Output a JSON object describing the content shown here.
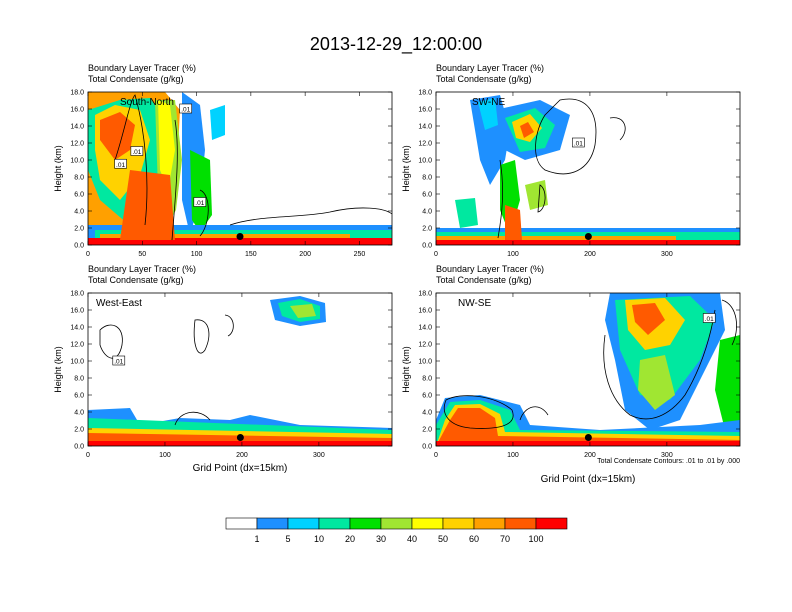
{
  "page_title": "2013-12-29_12:00:00",
  "chart_data": [
    {
      "type": "heatmap",
      "title_line1": "Boundary Layer Tracer   (%)",
      "title_line2": "Total Condensate   (g/kg)",
      "panel_label": "South-North",
      "ylabel": "Height (km)",
      "xlabel": "",
      "xlim": [
        0,
        280
      ],
      "ylim": [
        0,
        18
      ],
      "xticks": [
        0,
        50,
        100,
        150,
        200,
        250
      ],
      "yticks": [
        "0.0",
        "2.0",
        "4.0",
        "6.0",
        "8.0",
        "10.0",
        "12.0",
        "14.0",
        "16.0",
        "18.0"
      ],
      "marker": {
        "x": 140,
        "y": 1.0
      },
      "contour_labels": [
        {
          "text": ".01",
          "x": 90,
          "y": 16.0
        },
        {
          "text": ".01",
          "x": 45,
          "y": 11.0
        },
        {
          "text": ".01",
          "x": 30,
          "y": 9.5
        },
        {
          "text": ".01",
          "x": 103,
          "y": 5.0
        }
      ]
    },
    {
      "type": "heatmap",
      "title_line1": "Boundary Layer Tracer   (%)",
      "title_line2": "Total Condensate   (g/kg)",
      "panel_label": "SW-NE",
      "ylabel": "Height (km)",
      "xlabel": "",
      "xlim": [
        0,
        395
      ],
      "ylim": [
        0,
        18
      ],
      "xticks": [
        0,
        100,
        200,
        300
      ],
      "yticks": [
        "0.0",
        "2.0",
        "4.0",
        "6.0",
        "8.0",
        "10.0",
        "12.0",
        "14.0",
        "16.0",
        "18.0"
      ],
      "marker": {
        "x": 198,
        "y": 1.0
      },
      "contour_labels": [
        {
          "text": ".01",
          "x": 185,
          "y": 12.0
        }
      ]
    },
    {
      "type": "heatmap",
      "title_line1": "Boundary Layer Tracer   (%)",
      "title_line2": "Total Condensate   (g/kg)",
      "panel_label": "West-East",
      "ylabel": "Height (km)",
      "xlabel": "Grid Point (dx=15km)",
      "xlim": [
        0,
        395
      ],
      "ylim": [
        0,
        18
      ],
      "xticks": [
        0,
        100,
        200,
        300
      ],
      "yticks": [
        "0.0",
        "2.0",
        "4.0",
        "6.0",
        "8.0",
        "10.0",
        "12.0",
        "14.0",
        "16.0",
        "18.0"
      ],
      "marker": {
        "x": 198,
        "y": 1.0
      },
      "contour_labels": [
        {
          "text": ".01",
          "x": 40,
          "y": 10.0
        }
      ]
    },
    {
      "type": "heatmap",
      "title_line1": "Boundary Layer Tracer   (%)",
      "title_line2": "Total Condensate   (g/kg)",
      "panel_label": "NW-SE",
      "ylabel": "Height (km)",
      "xlabel": "Grid Point (dx=15km)",
      "xlim": [
        0,
        395
      ],
      "ylim": [
        0,
        18
      ],
      "xticks": [
        0,
        100,
        200,
        300
      ],
      "yticks": [
        "0.0",
        "2.0",
        "4.0",
        "6.0",
        "8.0",
        "10.0",
        "12.0",
        "14.0",
        "16.0",
        "18.0"
      ],
      "marker": {
        "x": 198,
        "y": 1.0
      },
      "contour_labels": [
        {
          "text": ".01",
          "x": 355,
          "y": 15.0
        }
      ],
      "contour_info": "Total Condensate Contours: .01 to .01 by .000"
    }
  ],
  "colorbar": {
    "labels": [
      "1",
      "5",
      "10",
      "20",
      "30",
      "40",
      "50",
      "60",
      "70",
      "100"
    ],
    "colors": [
      "#ffffff",
      "#1e90ff",
      "#00d2ff",
      "#00e8a0",
      "#00e000",
      "#a0e632",
      "#ffff00",
      "#ffd200",
      "#ffa000",
      "#ff5a00",
      "#ff0000"
    ]
  }
}
